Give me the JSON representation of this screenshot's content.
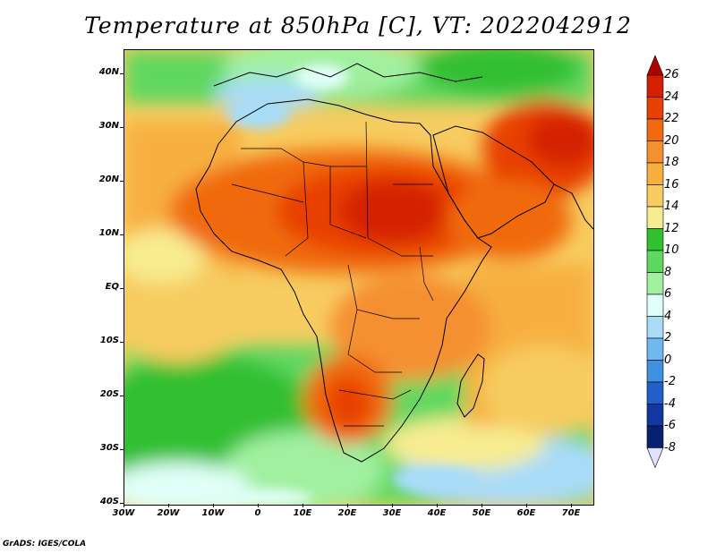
{
  "title": "Temperature at 850hPa [C], VT: 2022042912",
  "footer": "GrADS: IGES/COLA",
  "map": {
    "region": "Africa",
    "lon_range": [
      -30,
      75
    ],
    "lat_range": [
      -40,
      45
    ],
    "lat_labels": [
      "40N",
      "30N",
      "20N",
      "10N",
      "EQ",
      "10S",
      "20S",
      "30S",
      "40S"
    ],
    "lon_labels": [
      "30W",
      "20W",
      "10W",
      "0",
      "10E",
      "20E",
      "30E",
      "40E",
      "50E",
      "60E",
      "70E"
    ]
  },
  "colorbar": {
    "labels": [
      "26",
      "24",
      "22",
      "20",
      "18",
      "16",
      "14",
      "12",
      "10",
      "8",
      "6",
      "4",
      "2",
      "0",
      "-2",
      "-4",
      "-6",
      "-8"
    ],
    "colors": [
      "#b00000",
      "#d42000",
      "#e84000",
      "#f06a10",
      "#f59030",
      "#f7b040",
      "#f7cc60",
      "#f7ec90",
      "#30c030",
      "#60d860",
      "#a0f0a0",
      "#e0fff8",
      "#a8dcf8",
      "#70b8f0",
      "#4090e0",
      "#2060c8",
      "#1038a0",
      "#082070",
      "#00105a"
    ]
  }
}
